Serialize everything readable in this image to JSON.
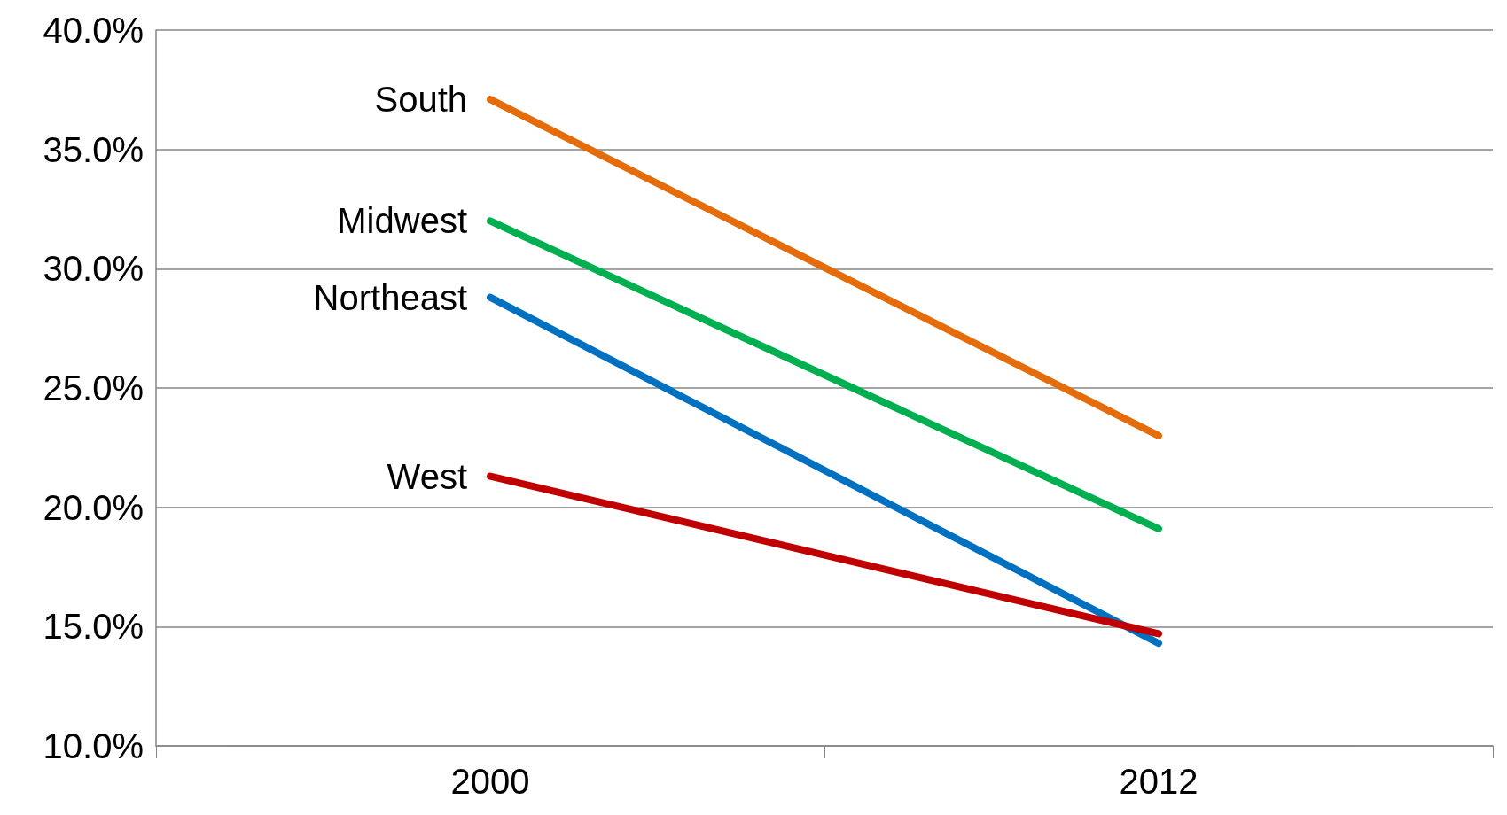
{
  "chart_data": {
    "type": "line",
    "categories": [
      "2000",
      "2012"
    ],
    "series": [
      {
        "name": "South",
        "color": "#e46c0a",
        "values": [
          37.1,
          23.0
        ]
      },
      {
        "name": "Midwest",
        "color": "#00b050",
        "values": [
          32.0,
          19.1
        ]
      },
      {
        "name": "Northeast",
        "color": "#0070c0",
        "values": [
          28.8,
          14.3
        ]
      },
      {
        "name": "West",
        "color": "#c00000",
        "values": [
          21.3,
          14.7
        ]
      }
    ],
    "ylim": [
      10,
      40
    ],
    "yticks": [
      {
        "value": 10,
        "label": "10.0%"
      },
      {
        "value": 15,
        "label": "15.0%"
      },
      {
        "value": 20,
        "label": "20.0%"
      },
      {
        "value": 25,
        "label": "25.0%"
      },
      {
        "value": 30,
        "label": "30.0%"
      },
      {
        "value": 35,
        "label": "35.0%"
      },
      {
        "value": 40,
        "label": "40.0%"
      }
    ],
    "grid": "y",
    "legend": false,
    "marker": "none",
    "line_style": "solid"
  }
}
